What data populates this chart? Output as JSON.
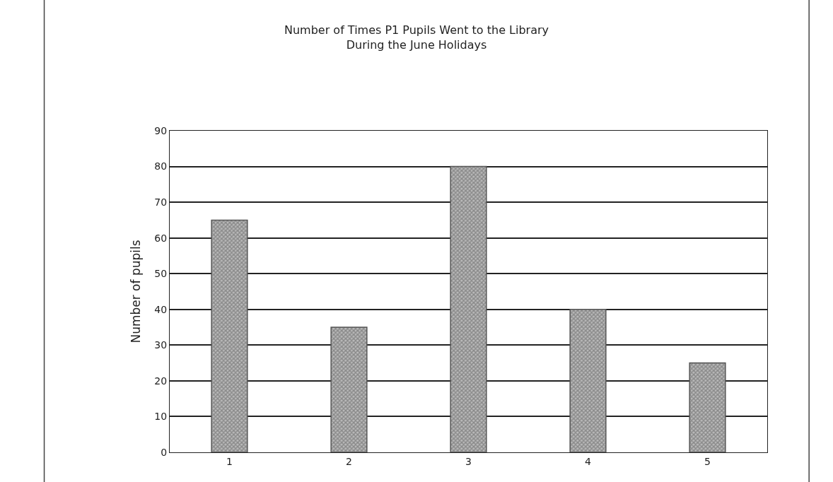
{
  "chart_data": {
    "type": "bar",
    "title": "Number of Times P1 Pupils Went to the Library\nDuring the June Holidays",
    "ylabel": "Number of pupils",
    "categories": [
      "1",
      "2",
      "3",
      "4",
      "5"
    ],
    "values": [
      65,
      35,
      80,
      40,
      25
    ],
    "color": "#555555",
    "ylim": [
      0,
      90
    ],
    "yticks": [
      0,
      10,
      20,
      30,
      40,
      50,
      60,
      70,
      80,
      90
    ],
    "grid": "y",
    "legend": false
  }
}
